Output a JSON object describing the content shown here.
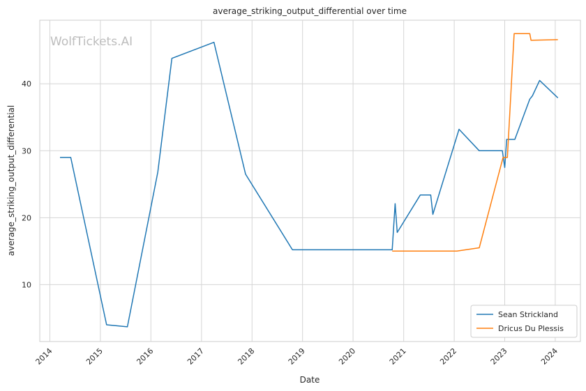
{
  "chart_data": {
    "type": "line",
    "title": "average_striking_output_differential over time",
    "xlabel": "Date",
    "ylabel": "average_striking_output_differential",
    "watermark": "WolfTickets.AI",
    "x_ticks": [
      "2014",
      "2015",
      "2016",
      "2017",
      "2018",
      "2019",
      "2020",
      "2021",
      "2022",
      "2023",
      "2024"
    ],
    "y_ticks": [
      10,
      20,
      30,
      40
    ],
    "xlim": [
      "2013-10-20",
      "2024-07-01"
    ],
    "ylim": [
      1.5,
      49.5
    ],
    "grid": true,
    "legend_position": "lower-right",
    "series": [
      {
        "name": "Sean Strickland",
        "color": "#1f77b4",
        "points": [
          [
            "2014-03-15",
            29.0
          ],
          [
            "2014-06-01",
            29.0
          ],
          [
            "2015-02-15",
            4.0
          ],
          [
            "2015-07-15",
            3.7
          ],
          [
            "2016-02-20",
            26.8
          ],
          [
            "2016-06-01",
            43.8
          ],
          [
            "2017-04-01",
            46.2
          ],
          [
            "2017-11-15",
            26.5
          ],
          [
            "2018-10-20",
            15.2
          ],
          [
            "2020-10-10",
            15.2
          ],
          [
            "2020-10-31",
            22.1
          ],
          [
            "2020-11-15",
            17.8
          ],
          [
            "2021-05-01",
            23.4
          ],
          [
            "2021-07-15",
            23.4
          ],
          [
            "2021-07-31",
            20.5
          ],
          [
            "2022-02-05",
            33.2
          ],
          [
            "2022-07-01",
            30.0
          ],
          [
            "2022-12-15",
            30.0
          ],
          [
            "2023-01-01",
            27.5
          ],
          [
            "2023-01-15",
            31.7
          ],
          [
            "2023-03-15",
            31.7
          ],
          [
            "2023-07-01",
            37.7
          ],
          [
            "2023-07-20",
            38.2
          ],
          [
            "2023-09-10",
            40.5
          ],
          [
            "2024-01-20",
            37.9
          ]
        ]
      },
      {
        "name": "Dricus Du Plessis",
        "color": "#ff7f0e",
        "points": [
          [
            "2020-10-10",
            15.0
          ],
          [
            "2022-01-20",
            15.0
          ],
          [
            "2022-07-01",
            15.5
          ],
          [
            "2022-12-20",
            29.0
          ],
          [
            "2023-01-20",
            29.0
          ],
          [
            "2023-03-10",
            47.5
          ],
          [
            "2023-07-01",
            47.5
          ],
          [
            "2023-07-10",
            46.5
          ],
          [
            "2024-01-20",
            46.6
          ]
        ]
      }
    ]
  }
}
